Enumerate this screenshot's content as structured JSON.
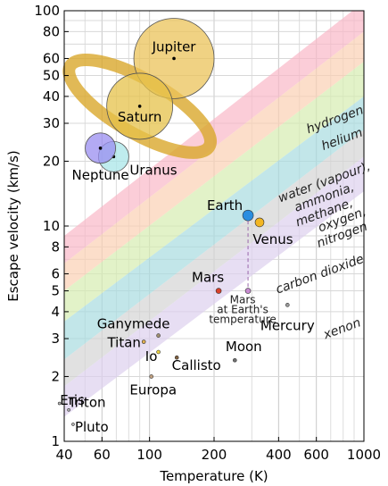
{
  "chart_data": {
    "type": "scatter",
    "xlabel": "Temperature (K)",
    "ylabel": "Escape velocity (km/s)",
    "x_scale": "log",
    "y_scale": "log",
    "xlim": [
      40,
      1000
    ],
    "ylim": [
      1,
      100
    ],
    "x_ticks": [
      40,
      60,
      100,
      200,
      400,
      600,
      1000
    ],
    "y_ticks": [
      1,
      2,
      3,
      4,
      5,
      6,
      8,
      10,
      20,
      30,
      40,
      50,
      60,
      80,
      100
    ],
    "grid": true,
    "bands": [
      {
        "name": "hydrogen",
        "color": "#f9b8c8"
      },
      {
        "name": "helium",
        "color": "#fbd0b4"
      },
      {
        "name": "water (vapour), ammonia, methane",
        "color": "#d6ecb0"
      },
      {
        "name": "oxygen, nitrogen",
        "color": "#a8dbe0"
      },
      {
        "name": "carbon dioxide",
        "color": "#d4d4d4"
      },
      {
        "name": "xenon",
        "color": "#ddd0ee"
      }
    ],
    "points": [
      {
        "name": "Jupiter",
        "x": 130,
        "y": 60,
        "color": "#ebc35a",
        "r": 45
      },
      {
        "name": "Saturn",
        "x": 90,
        "y": 36,
        "color": "#e6c24a",
        "r": 37
      },
      {
        "name": "Uranus",
        "x": 68,
        "y": 21,
        "color": "#a9e6e8",
        "r": 17
      },
      {
        "name": "Neptune",
        "x": 59,
        "y": 23,
        "color": "#9a8ef0",
        "r": 17
      },
      {
        "name": "Earth",
        "x": 288,
        "y": 11.2,
        "color": "#2a8ee0",
        "r": 6
      },
      {
        "name": "Venus",
        "x": 326,
        "y": 10.4,
        "color": "#f2b622",
        "r": 5
      },
      {
        "name": "Mars",
        "x": 210,
        "y": 5.0,
        "color": "#d8412a",
        "r": 3
      },
      {
        "name": "Mercury",
        "x": 440,
        "y": 4.3,
        "color": "#9a9a9a",
        "r": 2
      },
      {
        "name": "Ganymede",
        "x": 110,
        "y": 3.1,
        "color": "#a09070",
        "r": 2
      },
      {
        "name": "Titan",
        "x": 94,
        "y": 2.9,
        "color": "#e0b050",
        "r": 2
      },
      {
        "name": "Io",
        "x": 110,
        "y": 2.6,
        "color": "#e8d040",
        "r": 2
      },
      {
        "name": "Callisto",
        "x": 134,
        "y": 2.45,
        "color": "#806040",
        "r": 2
      },
      {
        "name": "Moon",
        "x": 250,
        "y": 2.38,
        "color": "#707070",
        "r": 2
      },
      {
        "name": "Europa",
        "x": 102,
        "y": 2.0,
        "color": "#c0a080",
        "r": 2
      },
      {
        "name": "Eris",
        "x": 42,
        "y": 1.4,
        "color": "#bbbbbb",
        "r": 1.5
      },
      {
        "name": "Triton",
        "x": 38,
        "y": 1.5,
        "color": "#bbbbbb",
        "r": 1.5
      },
      {
        "name": "Pluto",
        "x": 44,
        "y": 1.2,
        "color": "#bbbbbb",
        "r": 1.5
      }
    ],
    "annotation": {
      "text": [
        "Mars",
        "at Earth's",
        "temperature"
      ],
      "x": 288,
      "y": 5.0
    }
  }
}
